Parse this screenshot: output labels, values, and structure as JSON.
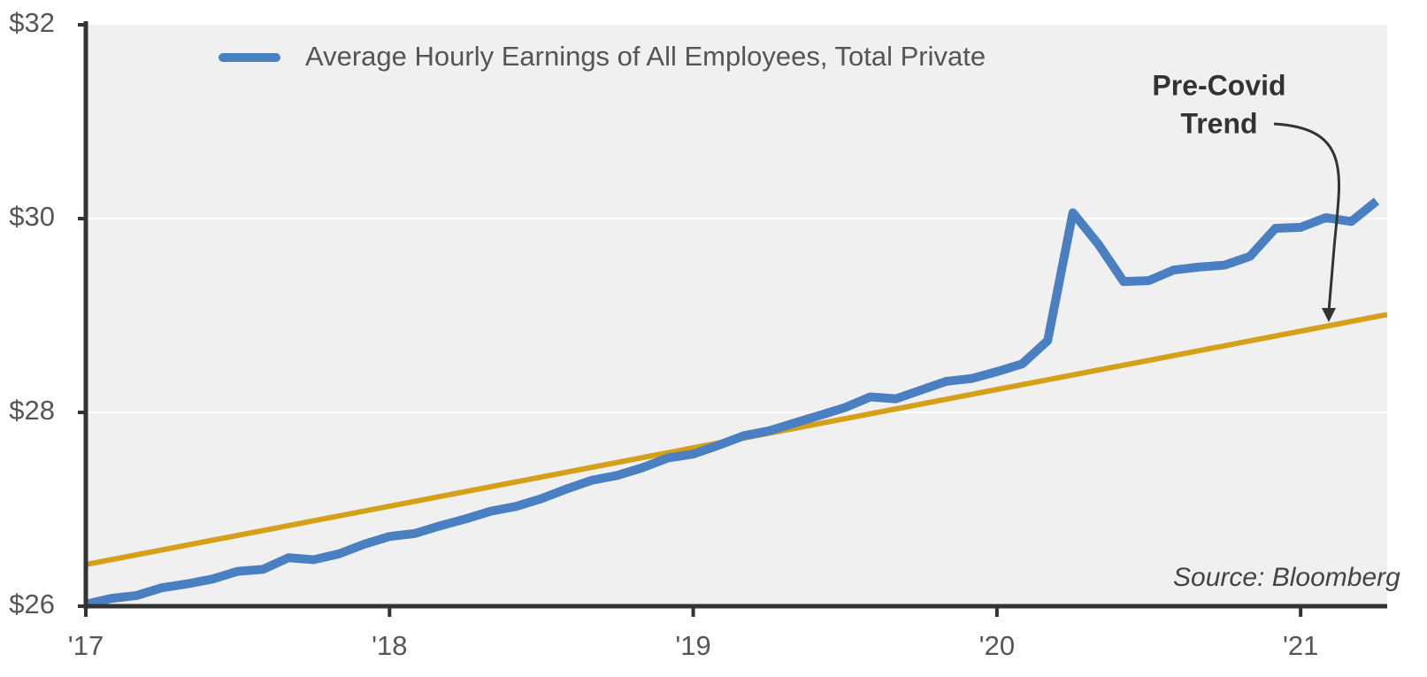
{
  "chart_data": {
    "type": "line",
    "x": [
      2017,
      2017.083,
      2017.167,
      2017.25,
      2017.333,
      2017.417,
      2017.5,
      2017.583,
      2017.667,
      2017.75,
      2017.833,
      2017.917,
      2018,
      2018.083,
      2018.167,
      2018.25,
      2018.333,
      2018.417,
      2018.5,
      2018.583,
      2018.667,
      2018.75,
      2018.833,
      2018.917,
      2019,
      2019.083,
      2019.167,
      2019.25,
      2019.333,
      2019.417,
      2019.5,
      2019.583,
      2019.667,
      2019.75,
      2019.833,
      2019.917,
      2020,
      2020.083,
      2020.167,
      2020.25,
      2020.333,
      2020.417,
      2020.5,
      2020.583,
      2020.667,
      2020.75,
      2020.833,
      2020.917,
      2021,
      2021.083,
      2021.167,
      2021.25
    ],
    "series": [
      {
        "name": "Average Hourly Earnings of All Employees, Total Private",
        "color": "#4a7fc1",
        "values": [
          26.02,
          26.08,
          26.11,
          26.19,
          26.23,
          26.28,
          26.36,
          26.38,
          26.5,
          26.48,
          26.54,
          26.64,
          26.72,
          26.75,
          26.83,
          26.9,
          26.98,
          27.03,
          27.11,
          27.21,
          27.3,
          27.35,
          27.43,
          27.53,
          27.57,
          27.66,
          27.76,
          27.81,
          27.89,
          27.97,
          28.05,
          28.16,
          28.14,
          28.23,
          28.32,
          28.35,
          28.42,
          28.5,
          28.74,
          30.06,
          29.74,
          29.35,
          29.36,
          29.47,
          29.5,
          29.52,
          29.61,
          29.9,
          29.91,
          30.01,
          29.97,
          30.18
        ]
      }
    ],
    "trend": {
      "color": "#d4a017",
      "x": [
        2017,
        2021.285
      ],
      "values": [
        26.43,
        29.01
      ]
    },
    "annotation_lines": [
      "Pre-Covid",
      "Trend"
    ],
    "source": "Source: Bloomberg",
    "xlim": [
      2017,
      2021.285
    ],
    "xticks": [
      {
        "value": 2017,
        "label": "'17"
      },
      {
        "value": 2018,
        "label": "'18"
      },
      {
        "value": 2019,
        "label": "'19"
      },
      {
        "value": 2020,
        "label": "'20"
      },
      {
        "value": 2021,
        "label": "'21"
      }
    ],
    "ylim": [
      26,
      32
    ],
    "yticks": [
      {
        "value": 26,
        "label": "$26"
      },
      {
        "value": 28,
        "label": "$28"
      },
      {
        "value": 30,
        "label": "$30"
      },
      {
        "value": 32,
        "label": "$32"
      }
    ],
    "grid": true
  }
}
